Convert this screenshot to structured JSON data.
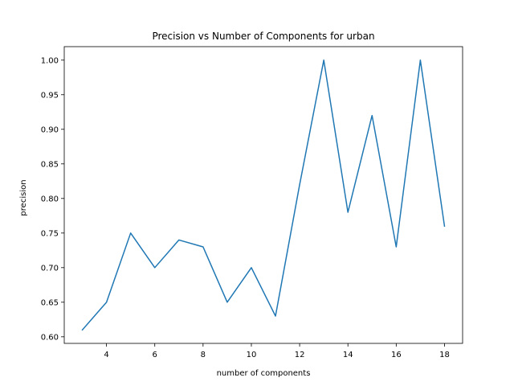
{
  "chart_data": {
    "type": "line",
    "title": "Precision vs Number of Components for urban",
    "xlabel": "number of components",
    "ylabel": "precision",
    "xlim": [
      2.25,
      18.75
    ],
    "ylim": [
      0.5905,
      1.0195
    ],
    "xticks": [
      4,
      6,
      8,
      10,
      12,
      14,
      16,
      18
    ],
    "yticks": [
      0.6,
      0.65,
      0.7,
      0.75,
      0.8,
      0.85,
      0.9,
      0.95,
      1.0
    ],
    "xtick_labels": [
      "4",
      "6",
      "8",
      "10",
      "12",
      "14",
      "16",
      "18"
    ],
    "ytick_labels": [
      "0.60",
      "0.65",
      "0.70",
      "0.75",
      "0.80",
      "0.85",
      "0.90",
      "0.95",
      "1.00"
    ],
    "grid": false,
    "series": [
      {
        "color": "#1f77b4",
        "x": [
          3,
          4,
          5,
          6,
          7,
          8,
          9,
          10,
          11,
          12,
          13,
          14,
          15,
          16,
          17,
          18
        ],
        "y": [
          0.61,
          0.65,
          0.75,
          0.7,
          0.74,
          0.73,
          0.65,
          0.7,
          0.63,
          0.82,
          1.0,
          0.78,
          0.92,
          0.73,
          1.0,
          0.76
        ]
      }
    ]
  }
}
